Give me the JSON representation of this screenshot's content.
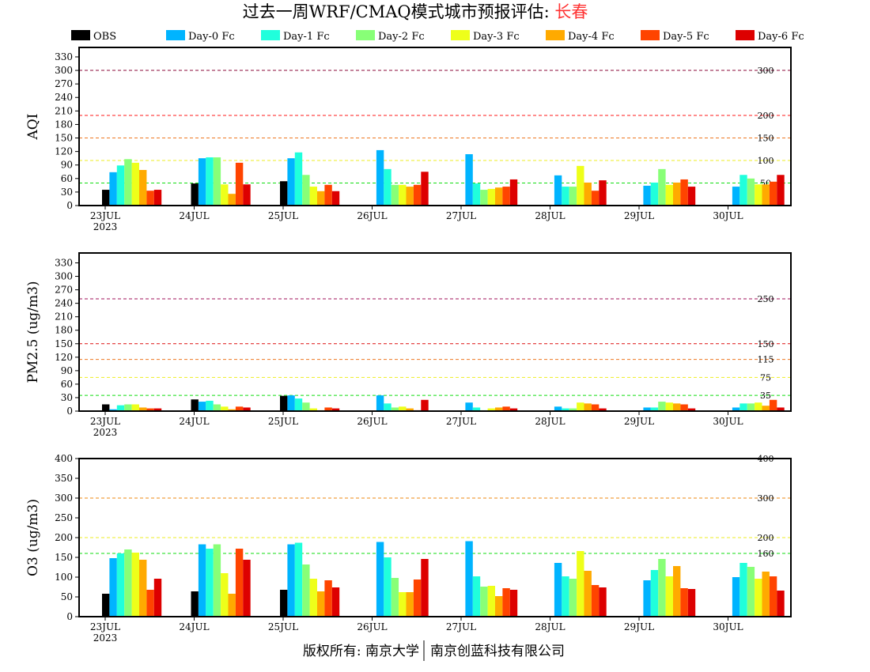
{
  "title": {
    "main": "过去一周WRF/CMAQ模式城市预报评估: ",
    "city": "长春"
  },
  "footer": {
    "left": "版权所有: 南京大学",
    "right": "南京创蓝科技有限公司"
  },
  "colors": {
    "title_city": "#ff3333"
  },
  "chart_data": {
    "type": "bar",
    "categories": [
      "23JUL",
      "24JUL",
      "25JUL",
      "26JUL",
      "27JUL",
      "28JUL",
      "29JUL",
      "30JUL"
    ],
    "year_label": "2023",
    "legend": [
      {
        "name": "OBS",
        "color": "#000000"
      },
      {
        "name": "Day-0 Fc",
        "color": "#00b4ff"
      },
      {
        "name": "Day-1 Fc",
        "color": "#20ffdc"
      },
      {
        "name": "Day-2 Fc",
        "color": "#88ff77"
      },
      {
        "name": "Day-3 Fc",
        "color": "#eeff1a"
      },
      {
        "name": "Day-4 Fc",
        "color": "#ffaa00"
      },
      {
        "name": "Day-5 Fc",
        "color": "#ff4400"
      },
      {
        "name": "Day-6 Fc",
        "color": "#dd0000"
      }
    ],
    "legend_position": "top",
    "panels": [
      {
        "ylabel": "AQI",
        "ylim": [
          0,
          351
        ],
        "yticks": [
          0,
          30,
          60,
          90,
          120,
          150,
          180,
          210,
          240,
          270,
          300,
          330
        ],
        "thresholds": [
          {
            "value": 300,
            "label": "300",
            "color": "#8b0a3a"
          },
          {
            "value": 200,
            "label": "200",
            "color": "#ff1a1a"
          },
          {
            "value": 150,
            "label": "150",
            "color": "#ee7722"
          },
          {
            "value": 100,
            "label": "100",
            "color": "#eeee22"
          },
          {
            "value": 50,
            "label": "50",
            "color": "#11dd11"
          }
        ],
        "series": [
          [
            35,
            49,
            54,
            null,
            null,
            null,
            null,
            null
          ],
          [
            74,
            105,
            105,
            123,
            114,
            67,
            44,
            42
          ],
          [
            89,
            107,
            118,
            81,
            49,
            42,
            51,
            68
          ],
          [
            103,
            107,
            68,
            46,
            35,
            42,
            81,
            60
          ],
          [
            95,
            47,
            42,
            46,
            37,
            88,
            46,
            47
          ],
          [
            79,
            26,
            32,
            42,
            40,
            51,
            51,
            47
          ],
          [
            33,
            95,
            46,
            46,
            42,
            33,
            58,
            53
          ],
          [
            35,
            47,
            32,
            75,
            58,
            56,
            42,
            68
          ]
        ]
      },
      {
        "ylabel": "PM2.5 (ug/m3)",
        "ylim": [
          0,
          352
        ],
        "yticks": [
          0,
          30,
          60,
          90,
          120,
          150,
          180,
          210,
          240,
          270,
          300,
          330
        ],
        "thresholds": [
          {
            "value": 250,
            "label": "250",
            "color": "#a0105a"
          },
          {
            "value": 150,
            "label": "150",
            "color": "#dd1111"
          },
          {
            "value": 115,
            "label": "115",
            "color": "#ee7722"
          },
          {
            "value": 75,
            "label": "75",
            "color": "#eeee22"
          },
          {
            "value": 35,
            "label": "35",
            "color": "#11dd11"
          }
        ],
        "series": [
          [
            15,
            26,
            34,
            null,
            null,
            null,
            null,
            null
          ],
          [
            4,
            21,
            35,
            35,
            19,
            10,
            8,
            8
          ],
          [
            13,
            23,
            28,
            17,
            8,
            6,
            8,
            17
          ],
          [
            15,
            15,
            19,
            8,
            2,
            6,
            21,
            17
          ],
          [
            15,
            10,
            6,
            10,
            6,
            19,
            19,
            19
          ],
          [
            8,
            4,
            2,
            6,
            8,
            17,
            17,
            12
          ],
          [
            6,
            10,
            8,
            2,
            10,
            15,
            15,
            25
          ],
          [
            6,
            8,
            6,
            25,
            6,
            6,
            6,
            8
          ]
        ]
      },
      {
        "ylabel": "O3 (ug/m3)",
        "ylim": [
          0,
          400
        ],
        "yticks": [
          0,
          50,
          100,
          150,
          200,
          250,
          300,
          350,
          400
        ],
        "thresholds": [
          {
            "value": 400,
            "label": "400",
            "color": "#ee1111"
          },
          {
            "value": 300,
            "label": "300",
            "color": "#ee8811"
          },
          {
            "value": 200,
            "label": "200",
            "color": "#eeee22"
          },
          {
            "value": 160,
            "label": "160",
            "color": "#11dd11"
          }
        ],
        "series": [
          [
            58,
            64,
            68,
            null,
            null,
            null,
            null,
            null
          ],
          [
            148,
            183,
            183,
            189,
            191,
            136,
            92,
            100
          ],
          [
            160,
            172,
            187,
            150,
            102,
            102,
            118,
            136
          ],
          [
            170,
            183,
            132,
            98,
            76,
            96,
            146,
            126
          ],
          [
            162,
            110,
            96,
            62,
            78,
            166,
            102,
            96
          ],
          [
            144,
            58,
            64,
            62,
            52,
            116,
            128,
            114
          ],
          [
            68,
            172,
            92,
            94,
            72,
            80,
            72,
            102
          ],
          [
            96,
            144,
            74,
            146,
            68,
            74,
            70,
            66
          ]
        ]
      }
    ]
  }
}
